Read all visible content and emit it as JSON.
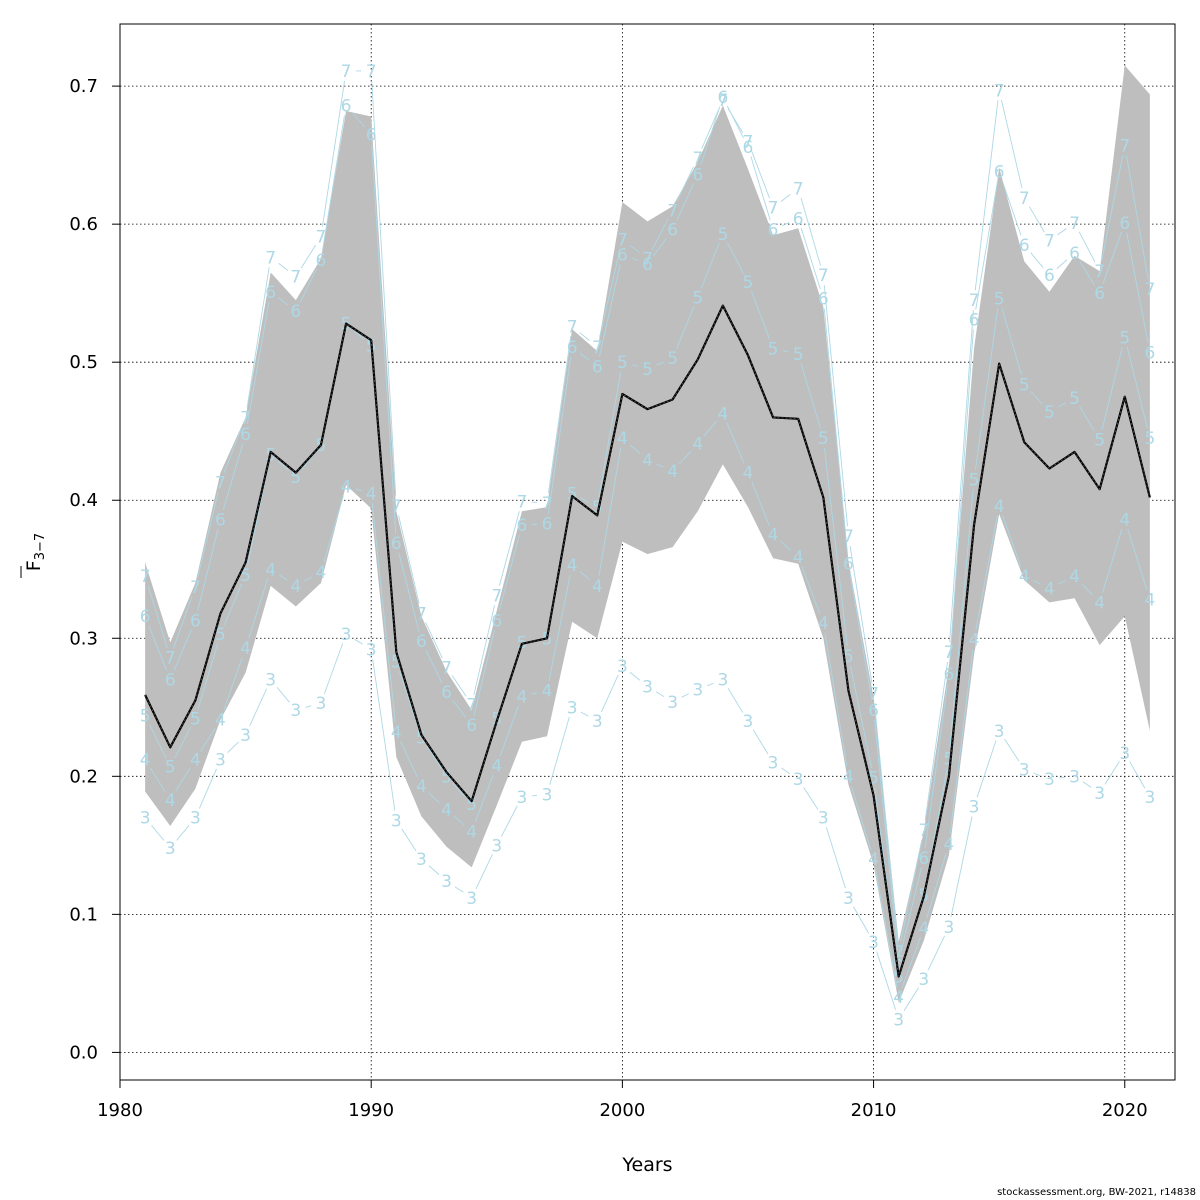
{
  "chart_data": {
    "type": "line",
    "xlabel": "Years",
    "ylabel_main": "F",
    "ylabel_sub": "3−7",
    "xlim": [
      1980,
      2022
    ],
    "ylim": [
      -0.02,
      0.745
    ],
    "x_ticks": [
      1980,
      1990,
      2000,
      2010,
      2020
    ],
    "y_ticks": [
      0.0,
      0.1,
      0.2,
      0.3,
      0.4,
      0.5,
      0.6,
      0.7
    ],
    "y_tick_labels": [
      "0.0",
      "0.1",
      "0.2",
      "0.3",
      "0.4",
      "0.5",
      "0.6",
      "0.7"
    ],
    "grid": true,
    "years": [
      1981,
      1982,
      1983,
      1984,
      1985,
      1986,
      1987,
      1988,
      1989,
      1990,
      1991,
      1992,
      1993,
      1994,
      1995,
      1996,
      1997,
      1998,
      1999,
      2000,
      2001,
      2002,
      2003,
      2004,
      2005,
      2006,
      2007,
      2008,
      2009,
      2010,
      2011,
      2012,
      2013,
      2014,
      2015,
      2016,
      2017,
      2018,
      2019,
      2020,
      2021
    ],
    "fbar": [
      0.259,
      0.221,
      0.255,
      0.318,
      0.355,
      0.435,
      0.42,
      0.44,
      0.528,
      0.516,
      0.29,
      0.23,
      0.203,
      0.182,
      0.24,
      0.296,
      0.3,
      0.403,
      0.389,
      0.477,
      0.466,
      0.473,
      0.502,
      0.541,
      0.505,
      0.46,
      0.459,
      0.402,
      0.262,
      0.186,
      0.055,
      0.113,
      0.2,
      0.382,
      0.499,
      0.442,
      0.423,
      0.435,
      0.408,
      0.475,
      0.402
    ],
    "ci_upper": [
      0.355,
      0.297,
      0.34,
      0.42,
      0.46,
      0.565,
      0.545,
      0.575,
      0.682,
      0.678,
      0.392,
      0.316,
      0.276,
      0.248,
      0.32,
      0.392,
      0.395,
      0.524,
      0.508,
      0.616,
      0.602,
      0.613,
      0.645,
      0.686,
      0.64,
      0.592,
      0.597,
      0.54,
      0.356,
      0.257,
      0.08,
      0.16,
      0.28,
      0.51,
      0.641,
      0.573,
      0.551,
      0.577,
      0.566,
      0.715,
      0.694
    ],
    "ci_lower": [
      0.189,
      0.164,
      0.191,
      0.241,
      0.275,
      0.338,
      0.323,
      0.34,
      0.411,
      0.394,
      0.214,
      0.171,
      0.149,
      0.134,
      0.179,
      0.225,
      0.229,
      0.312,
      0.3,
      0.37,
      0.361,
      0.366,
      0.392,
      0.426,
      0.395,
      0.358,
      0.354,
      0.3,
      0.194,
      0.136,
      0.036,
      0.081,
      0.143,
      0.288,
      0.39,
      0.342,
      0.326,
      0.329,
      0.295,
      0.316,
      0.233
    ],
    "age_series": [
      {
        "label": "3",
        "values": [
          0.17,
          0.148,
          0.17,
          0.212,
          0.23,
          0.27,
          0.248,
          0.253,
          0.303,
          0.292,
          0.168,
          0.14,
          0.124,
          0.112,
          0.15,
          0.185,
          0.187,
          0.25,
          0.24,
          0.28,
          0.265,
          0.254,
          0.263,
          0.27,
          0.24,
          0.21,
          0.198,
          0.17,
          0.112,
          0.08,
          0.024,
          0.053,
          0.091,
          0.178,
          0.233,
          0.205,
          0.198,
          0.2,
          0.188,
          0.217,
          0.185
        ]
      },
      {
        "label": "4",
        "values": [
          0.212,
          0.183,
          0.212,
          0.241,
          0.293,
          0.35,
          0.338,
          0.348,
          0.41,
          0.405,
          0.232,
          0.193,
          0.176,
          0.16,
          0.208,
          0.258,
          0.262,
          0.353,
          0.338,
          0.445,
          0.429,
          0.421,
          0.441,
          0.463,
          0.42,
          0.375,
          0.359,
          0.311,
          0.2,
          0.14,
          0.04,
          0.09,
          0.151,
          0.299,
          0.396,
          0.345,
          0.336,
          0.345,
          0.326,
          0.386,
          0.328
        ]
      },
      {
        "label": "5",
        "values": [
          0.244,
          0.207,
          0.242,
          0.303,
          0.346,
          0.433,
          0.417,
          0.44,
          0.528,
          0.512,
          0.283,
          0.228,
          0.2,
          0.18,
          0.242,
          0.297,
          0.3,
          0.405,
          0.395,
          0.5,
          0.495,
          0.503,
          0.547,
          0.593,
          0.558,
          0.51,
          0.506,
          0.445,
          0.287,
          0.199,
          0.055,
          0.114,
          0.213,
          0.415,
          0.546,
          0.484,
          0.464,
          0.474,
          0.444,
          0.518,
          0.445
        ]
      },
      {
        "label": "6",
        "values": [
          0.316,
          0.27,
          0.313,
          0.386,
          0.448,
          0.551,
          0.537,
          0.574,
          0.686,
          0.665,
          0.369,
          0.298,
          0.261,
          0.237,
          0.313,
          0.382,
          0.383,
          0.511,
          0.497,
          0.578,
          0.571,
          0.596,
          0.636,
          0.692,
          0.656,
          0.596,
          0.604,
          0.546,
          0.354,
          0.248,
          0.066,
          0.141,
          0.274,
          0.531,
          0.638,
          0.585,
          0.563,
          0.579,
          0.55,
          0.601,
          0.507
        ]
      },
      {
        "label": "7",
        "values": [
          0.345,
          0.286,
          0.337,
          0.413,
          0.46,
          0.576,
          0.562,
          0.591,
          0.711,
          0.711,
          0.396,
          0.318,
          0.279,
          0.252,
          0.331,
          0.399,
          0.398,
          0.526,
          0.511,
          0.589,
          0.575,
          0.61,
          0.648,
          0.69,
          0.66,
          0.612,
          0.626,
          0.563,
          0.374,
          0.26,
          0.073,
          0.161,
          0.29,
          0.545,
          0.697,
          0.619,
          0.588,
          0.601,
          0.566,
          0.657,
          0.553
        ]
      }
    ],
    "colors": {
      "band": "#bebebe",
      "fbar_line": "#000000",
      "age": "#add8e6",
      "grid": "#000000"
    }
  },
  "footer": {
    "credit": "stockassessment.org, BW-2021, r14838"
  }
}
